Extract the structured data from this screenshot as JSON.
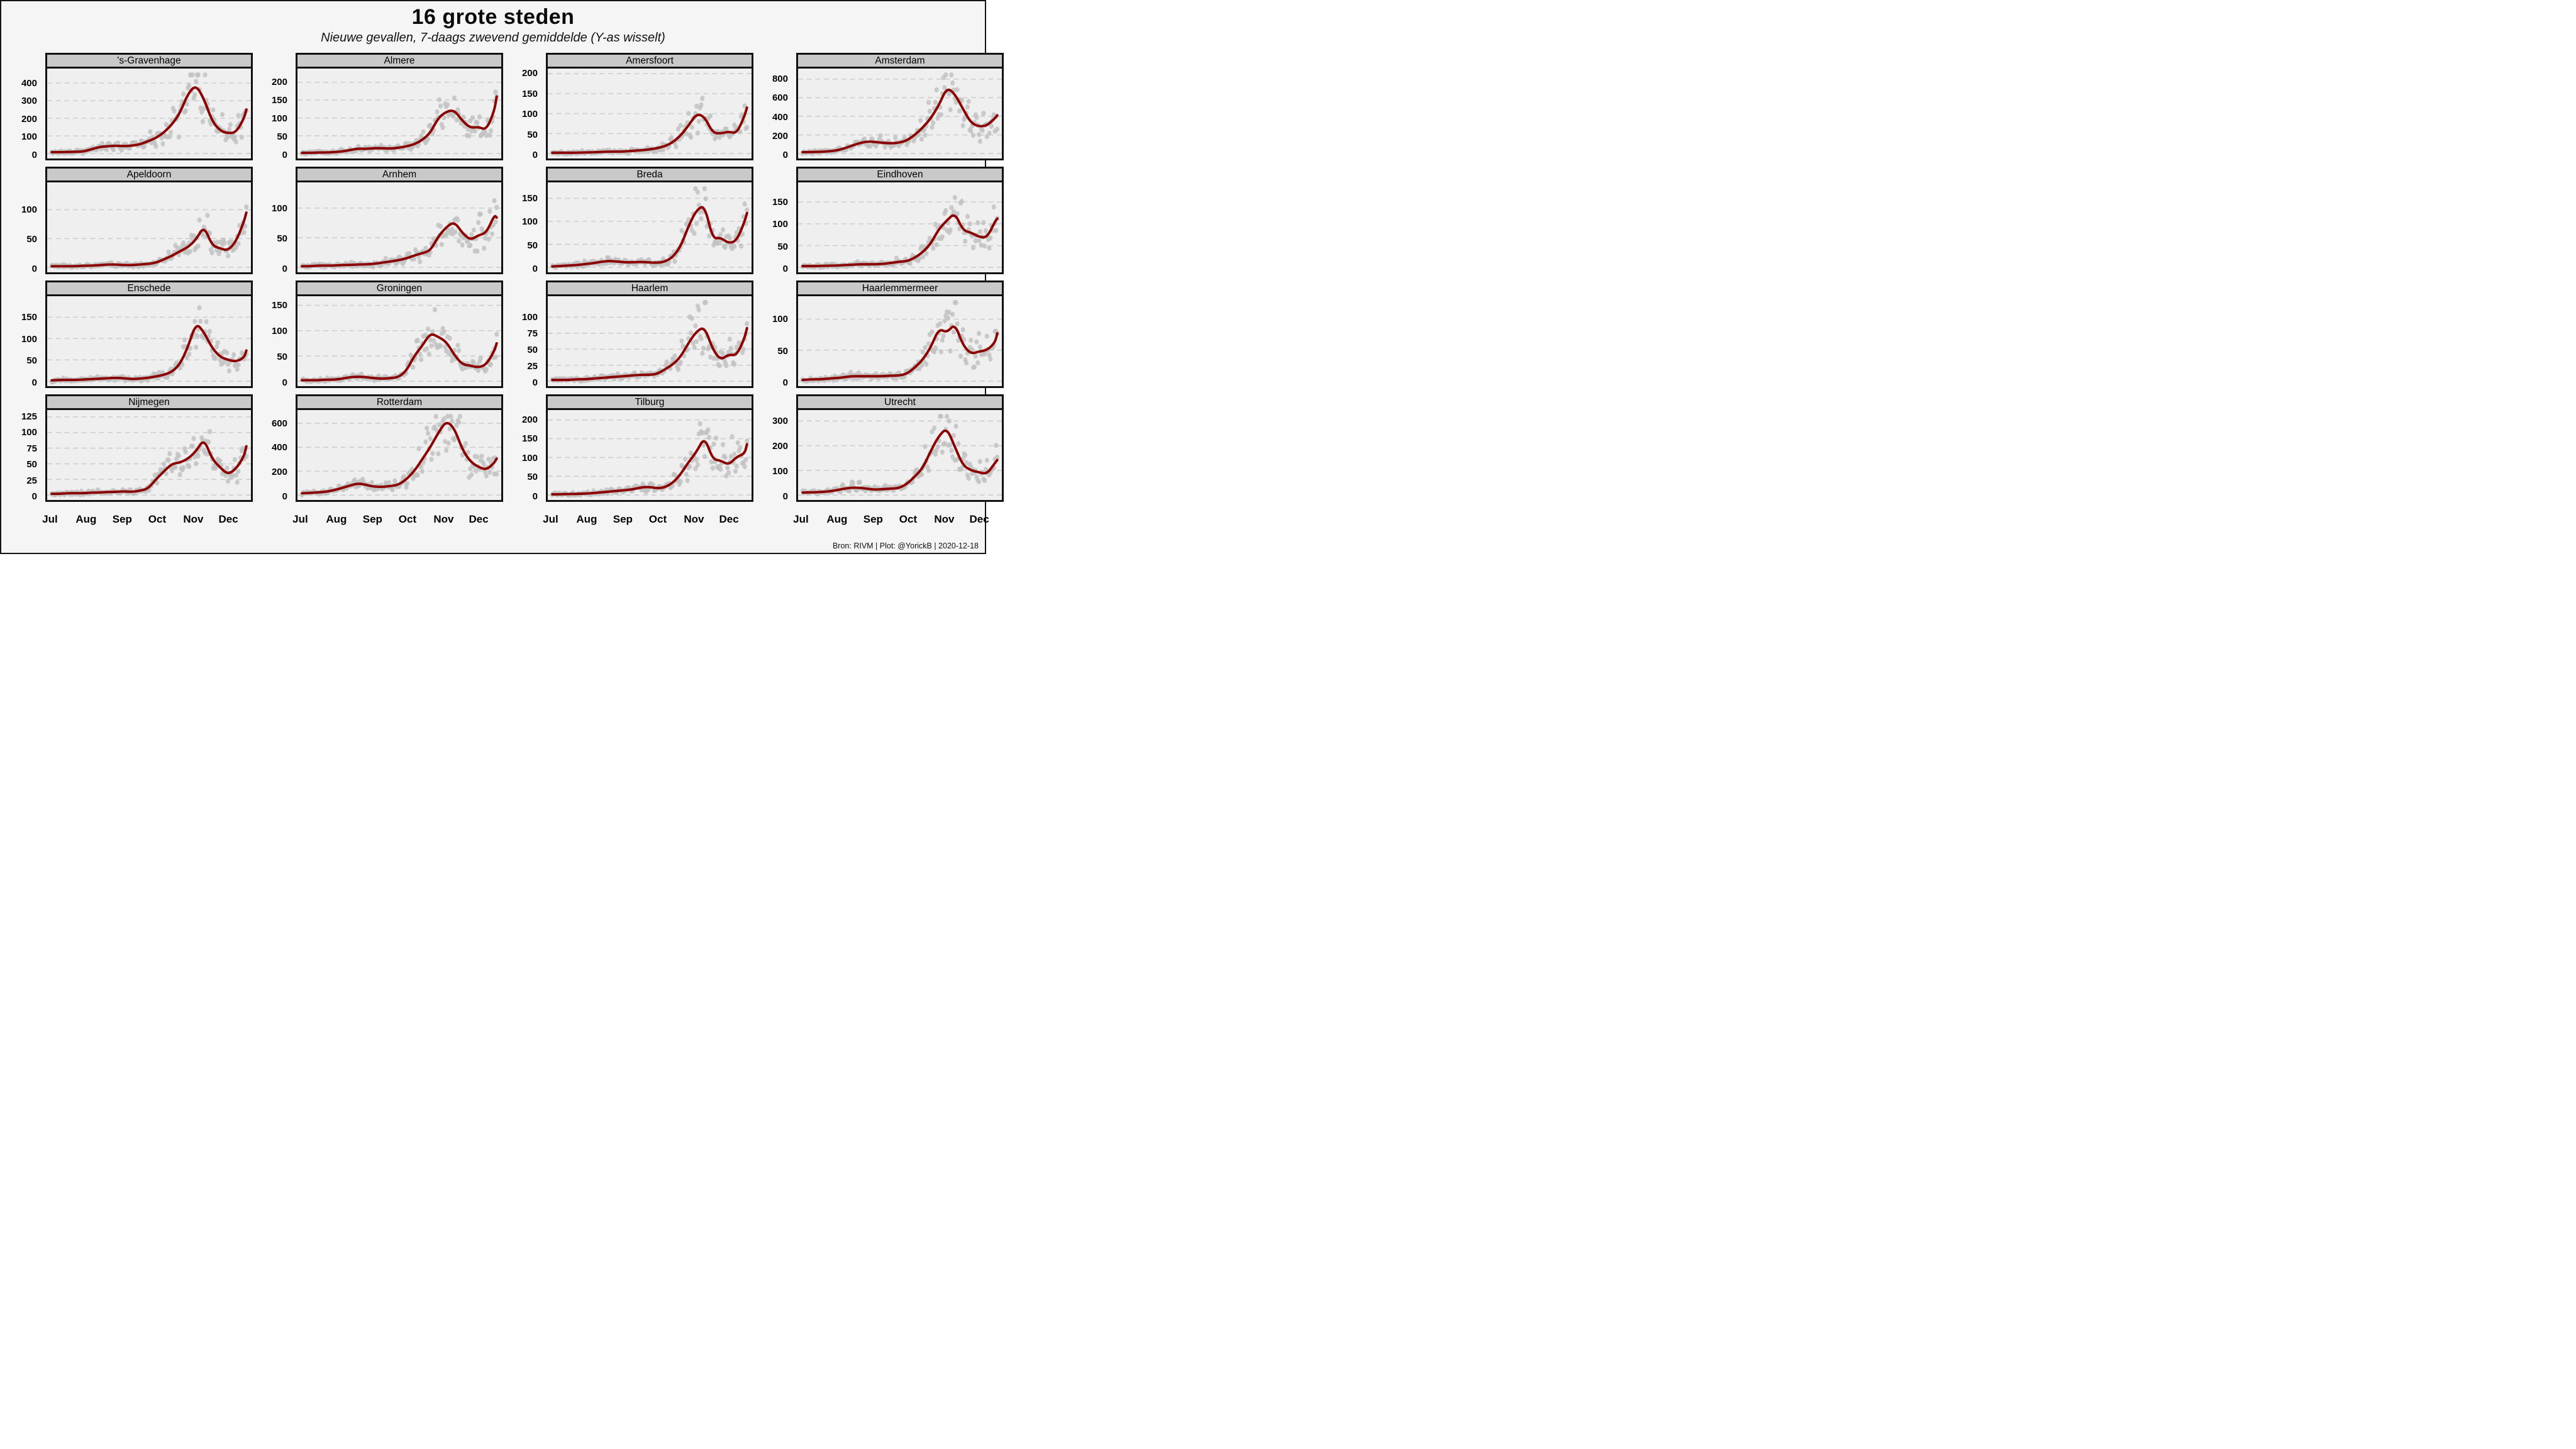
{
  "title": "16 grote steden",
  "subtitle": "Nieuwe gevallen, 7-daags zwevend gemiddelde (Y-as wisselt)",
  "footer": "Bron: RIVM | Plot: @YorickB |  2020-12-18",
  "colors": {
    "line": "#8b0000",
    "dots": "#c2c2c2",
    "grid": "#cdcdcd",
    "panel_bg": "#efefef",
    "header_bg": "#c9c9c9",
    "page_bg": "#f5f5f5",
    "border": "#111111"
  },
  "chart_data": {
    "type": "line",
    "title": "16 grote steden",
    "subtitle": "Nieuwe gevallen, 7-daags zwevend gemiddelde (Y-as wisselt)",
    "xlabel": "",
    "ylabel": "",
    "legend": "none",
    "grid": "dashed-horizontal",
    "x_months": [
      "Jul",
      "Aug",
      "Sep",
      "Oct",
      "Nov",
      "Dec"
    ],
    "month_start_days": [
      0,
      31,
      62,
      92,
      123,
      153
    ],
    "x_domain_days": [
      -4,
      174
    ],
    "x_days": [
      0,
      7,
      14,
      21,
      28,
      35,
      42,
      49,
      56,
      63,
      70,
      77,
      84,
      91,
      98,
      105,
      112,
      119,
      126,
      133,
      140,
      147,
      154,
      161,
      168,
      170
    ],
    "series_note": "values = 7-day moving average of new cases, sampled weekly Jul 1 - Dec 18 2020; gray dots are daily raw counts scattered around the average",
    "panels": [
      {
        "city": "'s-Gravenhage",
        "yticks": [
          0,
          100,
          200,
          300,
          400
        ],
        "ymax": 465,
        "values": [
          8,
          8,
          9,
          10,
          12,
          25,
          38,
          42,
          45,
          42,
          45,
          52,
          70,
          88,
          120,
          165,
          230,
          340,
          390,
          310,
          185,
          130,
          115,
          120,
          200,
          250
        ]
      },
      {
        "city": "Almere",
        "yticks": [
          0,
          50,
          100,
          150,
          200
        ],
        "ymax": 230,
        "values": [
          2,
          2,
          3,
          3,
          4,
          6,
          10,
          14,
          13,
          15,
          15,
          14,
          16,
          20,
          26,
          38,
          58,
          100,
          118,
          122,
          92,
          72,
          75,
          66,
          120,
          160
        ]
      },
      {
        "city": "Amersfoort",
        "yticks": [
          0,
          50,
          100,
          150,
          200
        ],
        "ymax": 205,
        "values": [
          2,
          2,
          2,
          2,
          3,
          3,
          4,
          5,
          5,
          5,
          7,
          8,
          10,
          13,
          18,
          28,
          45,
          70,
          100,
          92,
          52,
          50,
          55,
          50,
          95,
          115
        ]
      },
      {
        "city": "Amsterdam",
        "yticks": [
          0,
          200,
          400,
          600,
          800
        ],
        "ymax": 880,
        "values": [
          15,
          16,
          18,
          22,
          30,
          50,
          80,
          110,
          130,
          125,
          115,
          110,
          115,
          140,
          200,
          280,
          380,
          520,
          710,
          640,
          480,
          330,
          290,
          300,
          380,
          410
        ]
      },
      {
        "city": "Apeldoorn",
        "yticks": [
          0,
          50,
          100
        ],
        "ymax": 142,
        "values": [
          2,
          2,
          2,
          2,
          3,
          3,
          4,
          5,
          5,
          4,
          4,
          5,
          6,
          8,
          14,
          20,
          28,
          35,
          48,
          72,
          38,
          33,
          29,
          45,
          80,
          95
        ]
      },
      {
        "city": "Arnhem",
        "yticks": [
          0,
          50,
          100
        ],
        "ymax": 138,
        "values": [
          2,
          2,
          3,
          3,
          3,
          4,
          4,
          5,
          5,
          6,
          8,
          10,
          12,
          15,
          20,
          24,
          28,
          52,
          68,
          77,
          58,
          46,
          54,
          58,
          88,
          84
        ]
      },
      {
        "city": "Breda",
        "yticks": [
          0,
          50,
          100,
          150
        ],
        "ymax": 178,
        "values": [
          2,
          3,
          4,
          5,
          7,
          9,
          12,
          14,
          13,
          11,
          11,
          12,
          11,
          10,
          12,
          22,
          45,
          90,
          125,
          135,
          62,
          65,
          52,
          58,
          100,
          118
        ]
      },
      {
        "city": "Eindhoven",
        "yticks": [
          0,
          50,
          100,
          150
        ],
        "ymax": 188,
        "values": [
          3,
          3,
          3,
          4,
          4,
          5,
          6,
          7,
          7,
          7,
          8,
          10,
          13,
          14,
          22,
          35,
          55,
          88,
          108,
          125,
          85,
          80,
          70,
          68,
          105,
          112
        ]
      },
      {
        "city": "Enschede",
        "yticks": [
          0,
          50,
          100,
          150
        ],
        "ymax": 192,
        "values": [
          2,
          3,
          3,
          3,
          4,
          5,
          6,
          7,
          8,
          7,
          5,
          6,
          8,
          11,
          15,
          22,
          40,
          80,
          137,
          115,
          78,
          57,
          50,
          46,
          55,
          72
        ]
      },
      {
        "city": "Groningen",
        "yticks": [
          0,
          50,
          100,
          150
        ],
        "ymax": 162,
        "values": [
          2,
          2,
          2,
          3,
          3,
          5,
          8,
          9,
          8,
          6,
          5,
          6,
          8,
          20,
          50,
          70,
          95,
          88,
          78,
          52,
          33,
          31,
          27,
          33,
          60,
          75
        ]
      },
      {
        "city": "Haarlem",
        "yticks": [
          0,
          25,
          50,
          75,
          100
        ],
        "ymax": 128,
        "values": [
          2,
          2,
          2,
          3,
          3,
          4,
          5,
          6,
          7,
          8,
          9,
          10,
          10,
          11,
          18,
          26,
          38,
          60,
          78,
          85,
          50,
          33,
          42,
          40,
          68,
          83
        ]
      },
      {
        "city": "Haarlemmermeer",
        "yticks": [
          0,
          50,
          100
        ],
        "ymax": 132,
        "values": [
          2,
          3,
          3,
          4,
          5,
          6,
          8,
          8,
          8,
          8,
          8,
          9,
          9,
          12,
          22,
          35,
          55,
          85,
          78,
          93,
          58,
          44,
          48,
          50,
          62,
          77
        ]
      },
      {
        "city": "Nijmegen",
        "yticks": [
          0,
          25,
          50,
          75,
          100,
          125
        ],
        "ymax": 131,
        "values": [
          2,
          2,
          3,
          3,
          3,
          4,
          4,
          5,
          5,
          6,
          5,
          7,
          10,
          25,
          38,
          50,
          52,
          58,
          70,
          90,
          58,
          44,
          33,
          42,
          62,
          78
        ]
      },
      {
        "city": "Rotterdam",
        "yticks": [
          0,
          200,
          400,
          600
        ],
        "ymax": 685,
        "values": [
          15,
          18,
          22,
          28,
          40,
          60,
          80,
          98,
          85,
          70,
          68,
          75,
          85,
          130,
          200,
          300,
          400,
          520,
          620,
          560,
          380,
          280,
          235,
          210,
          270,
          305
        ]
      },
      {
        "city": "Tilburg",
        "yticks": [
          0,
          50,
          100,
          150,
          200
        ],
        "ymax": 218,
        "values": [
          2,
          2,
          3,
          3,
          4,
          5,
          7,
          9,
          11,
          13,
          15,
          20,
          22,
          18,
          20,
          32,
          55,
          88,
          115,
          155,
          95,
          92,
          80,
          102,
          110,
          135
        ]
      },
      {
        "city": "Utrecht",
        "yticks": [
          0,
          100,
          200,
          300
        ],
        "ymax": 332,
        "values": [
          10,
          11,
          12,
          14,
          18,
          25,
          30,
          30,
          26,
          22,
          24,
          26,
          28,
          45,
          75,
          110,
          180,
          240,
          272,
          195,
          120,
          100,
          92,
          85,
          130,
          142
        ]
      }
    ]
  }
}
